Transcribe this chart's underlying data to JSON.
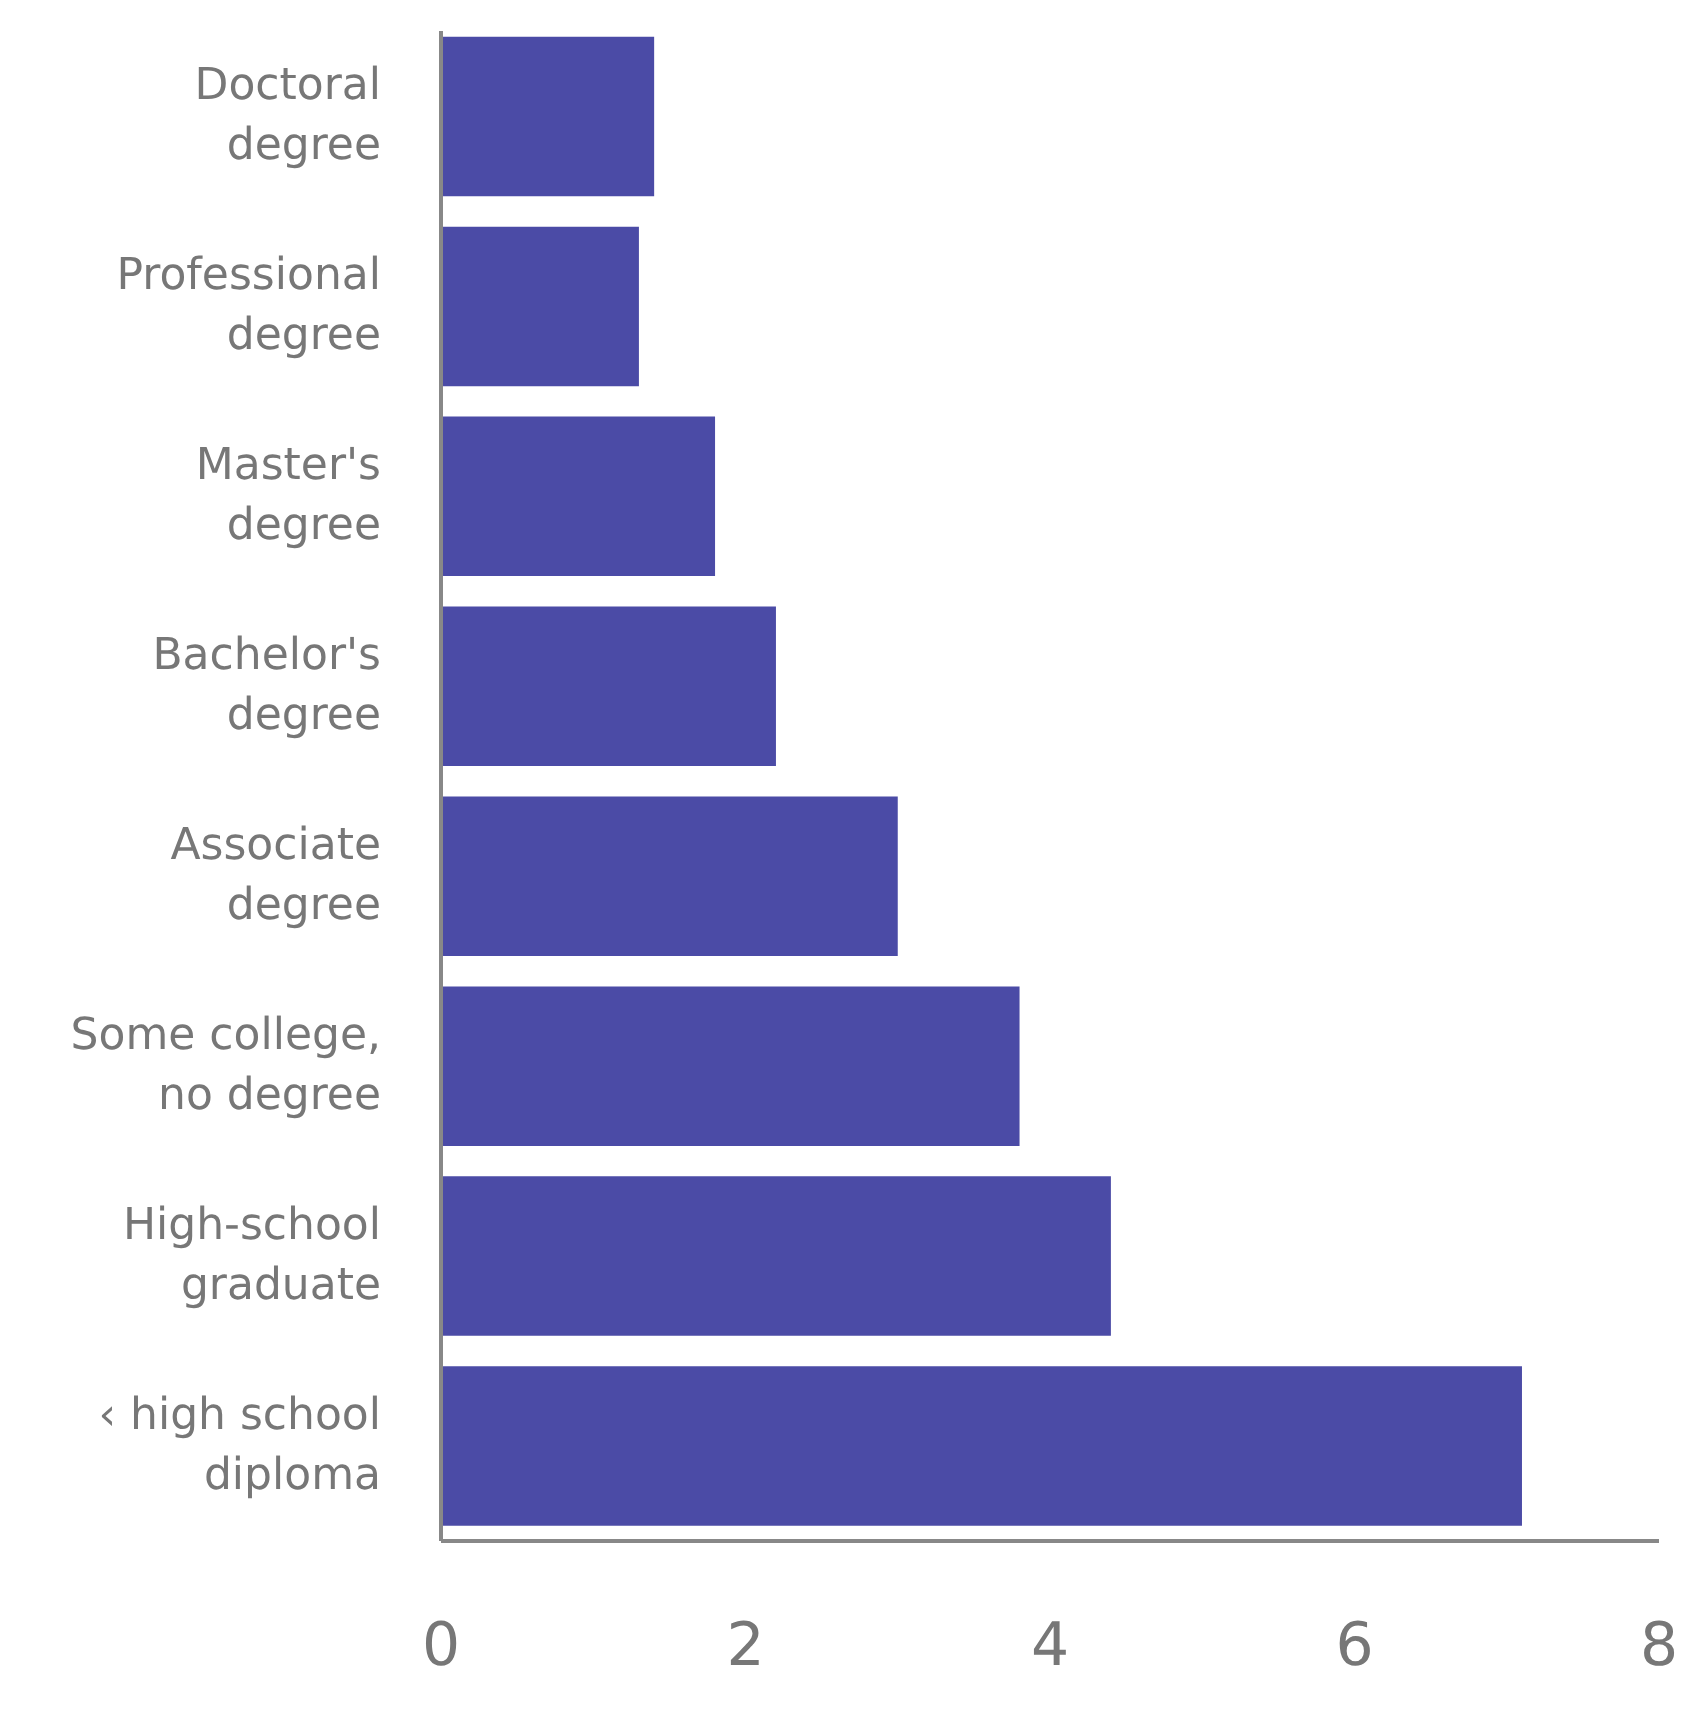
{
  "chart_data": {
    "type": "bar",
    "orientation": "horizontal",
    "categories": [
      "Doctoral degree",
      "Professional degree",
      "Master's degree",
      "Bachelor's degree",
      "Associate degree",
      "Some college, no degree",
      "High-school graduate",
      "‹ high school diploma"
    ],
    "values": [
      1.4,
      1.3,
      1.8,
      2.2,
      3.0,
      3.8,
      4.4,
      7.1
    ],
    "color": "#4b4ba6",
    "xlim": [
      0,
      8
    ],
    "xticks": [
      0,
      2,
      4,
      6,
      8
    ],
    "grid": false
  }
}
